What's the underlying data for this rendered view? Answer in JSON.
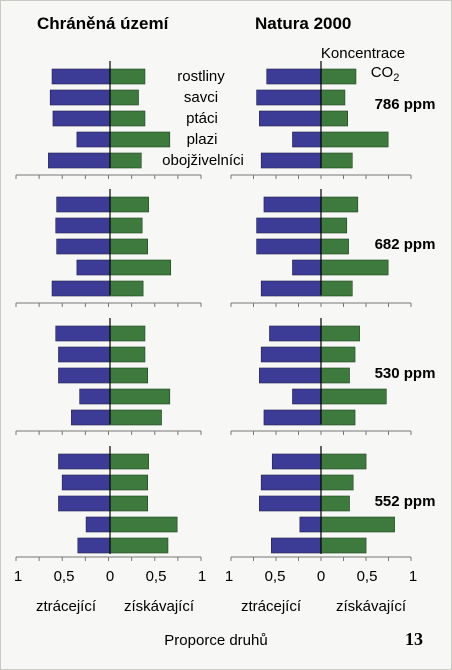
{
  "headers": {
    "left": "Chráněná území",
    "right": "Natura 2000",
    "co2_line1": "Koncentrace",
    "co2_line2": "CO",
    "co2_sub": "2"
  },
  "species": [
    "rostliny",
    "savci",
    "ptáci",
    "plazi",
    "obojživelníci"
  ],
  "axis": {
    "ticks": [
      "1",
      "0,5",
      "0",
      "0,5",
      "1"
    ],
    "loss_label": "ztrácející",
    "gain_label": "získávající",
    "title": "Proporce druhů"
  },
  "page_number": "13",
  "colors": {
    "loss": "#3c3c96",
    "gain": "#3e7a3e",
    "background": "#f7f7f5"
  },
  "chart_data": {
    "type": "bar",
    "orientation": "horizontal-diverging",
    "categories": [
      "rostliny",
      "savci",
      "ptáci",
      "plazi",
      "obojživelníci"
    ],
    "xlim": [
      -1,
      1
    ],
    "grid": false,
    "panels": [
      {
        "scenario": "786 ppm",
        "region": "Chráněná území",
        "loss": [
          0.63,
          0.65,
          0.62,
          0.36,
          0.67
        ],
        "gain": [
          0.38,
          0.31,
          0.38,
          0.65,
          0.34
        ]
      },
      {
        "scenario": "786 ppm",
        "region": "Natura 2000",
        "loss": [
          0.59,
          0.7,
          0.67,
          0.31,
          0.65
        ],
        "gain": [
          0.38,
          0.26,
          0.29,
          0.73,
          0.34
        ]
      },
      {
        "scenario": "682 ppm",
        "region": "Chráněná území",
        "loss": [
          0.58,
          0.59,
          0.58,
          0.36,
          0.63
        ],
        "gain": [
          0.42,
          0.35,
          0.41,
          0.66,
          0.36
        ]
      },
      {
        "scenario": "682 ppm",
        "region": "Natura 2000",
        "loss": [
          0.62,
          0.7,
          0.7,
          0.31,
          0.65
        ],
        "gain": [
          0.4,
          0.28,
          0.3,
          0.73,
          0.34
        ]
      },
      {
        "scenario": "530 ppm",
        "region": "Chráněná území",
        "loss": [
          0.59,
          0.56,
          0.56,
          0.33,
          0.42
        ],
        "gain": [
          0.38,
          0.38,
          0.41,
          0.65,
          0.56
        ]
      },
      {
        "scenario": "530 ppm",
        "region": "Natura 2000",
        "loss": [
          0.56,
          0.65,
          0.67,
          0.31,
          0.62
        ],
        "gain": [
          0.42,
          0.37,
          0.31,
          0.71,
          0.37
        ]
      },
      {
        "scenario": "552 ppm",
        "region": "Chráněná území",
        "loss": [
          0.56,
          0.52,
          0.56,
          0.26,
          0.35
        ],
        "gain": [
          0.42,
          0.41,
          0.41,
          0.73,
          0.63
        ]
      },
      {
        "scenario": "552 ppm",
        "region": "Natura 2000",
        "loss": [
          0.53,
          0.65,
          0.67,
          0.23,
          0.54
        ],
        "gain": [
          0.49,
          0.35,
          0.31,
          0.8,
          0.49
        ]
      }
    ]
  }
}
